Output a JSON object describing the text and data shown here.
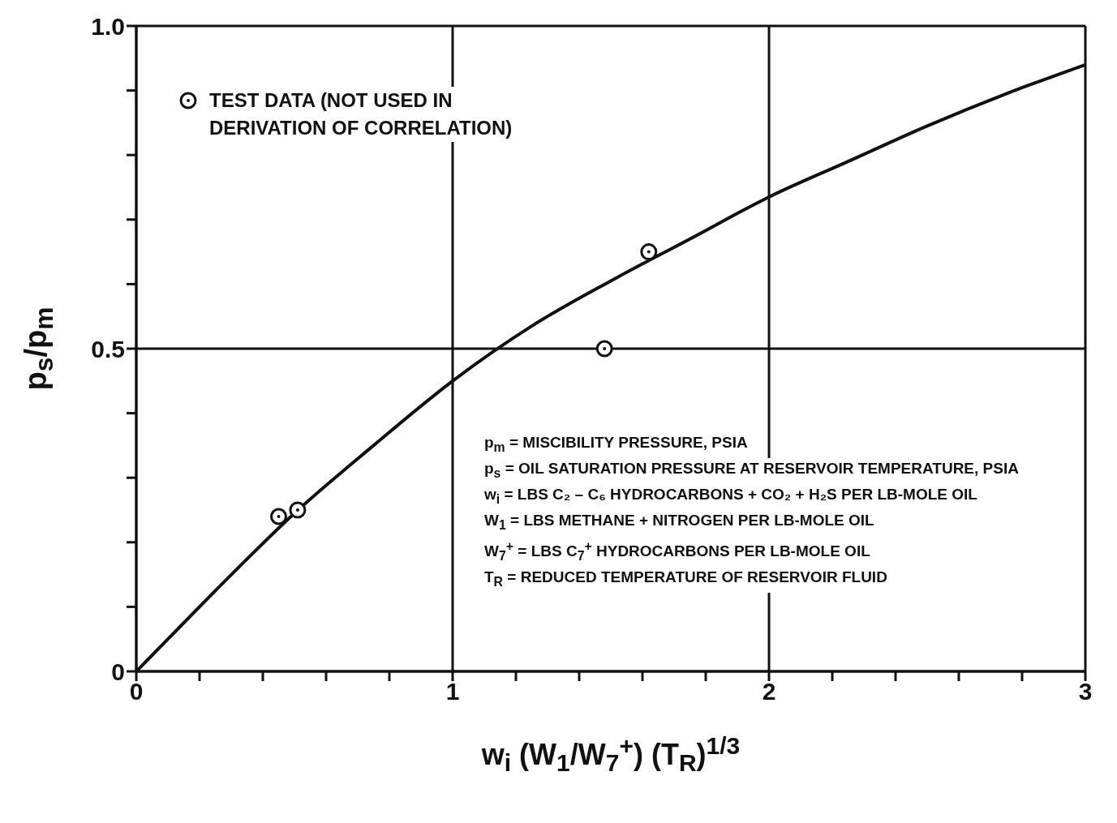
{
  "chart_data": {
    "type": "line",
    "xlabel": "w$_{i}$ (W$_{1}$/W$_{7}$$^{+}$) (T$_{R}$)$^{1/3}$",
    "ylabel": "p$_{s}$/p$_{m}$",
    "series": [
      {
        "color": "#111111",
        "x": [
          0,
          0.1,
          0.25,
          0.5,
          0.75,
          1,
          1.25,
          1.5,
          1.75,
          2,
          2.25,
          2.5,
          2.75,
          3
        ],
        "values": [
          0,
          0.05,
          0.125,
          0.245,
          0.35,
          0.45,
          0.535,
          0.605,
          0.67,
          0.735,
          0.79,
          0.845,
          0.895,
          0.94
        ]
      },
      {
        "type": "scatter",
        "name": "TEST DATA (NOT USED IN DERIVATION OF CORRELATION)",
        "color": "#111111",
        "marker": "circle",
        "x": [
          0.45,
          0.51,
          1.48,
          1.62
        ],
        "values": [
          0.24,
          0.25,
          0.5,
          0.65
        ]
      }
    ],
    "xlim": [
      0,
      3
    ],
    "xticks": [
      0,
      {
        "value": 0.2,
        "label": null
      },
      {
        "value": 0.4,
        "label": null
      },
      {
        "value": 0.6,
        "label": null
      },
      {
        "value": 0.8,
        "label": null
      },
      1,
      {
        "value": 1.2,
        "label": null
      },
      {
        "value": 1.4,
        "label": null
      },
      {
        "value": 1.6,
        "label": null
      },
      {
        "value": 1.8,
        "label": null
      },
      2,
      {
        "value": 2.2,
        "label": null
      },
      {
        "value": 2.4,
        "label": null
      },
      {
        "value": 2.6,
        "label": null
      },
      {
        "value": 2.8,
        "label": null
      },
      3
    ],
    "ylim": [
      0,
      1
    ],
    "yticks": [
      0,
      {
        "value": 0.1,
        "label": null
      },
      {
        "value": 0.2,
        "label": null
      },
      {
        "value": 0.3,
        "label": null
      },
      {
        "value": 0.4,
        "label": null
      },
      0.5,
      {
        "value": 0.6,
        "label": null
      },
      {
        "value": 0.7,
        "label": null
      },
      {
        "value": 0.8,
        "label": null
      },
      {
        "value": 0.9,
        "label": null
      },
      {
        "value": 1,
        "label": "1.0"
      }
    ],
    "grid": true,
    "legend": "top left",
    "annotations": [
      "p$_{m}$ = MISCIBILITY PRESSURE, PSIA",
      "p$_{s}$ = OIL SATURATION PRESSURE AT RESERVOIR TEMPERATURE, PSIA",
      "w$_{i}$ = LBS C₂ – C₆ HYDROCARBONS + CO₂ + H₂S PER LB-MOLE OIL",
      "W$_{1}$ = LBS METHANE + NITROGEN PER LB-MOLE OIL",
      "W$_{7}$$^{+}$ = LBS C$_{7}$$^{+}$ HYDROCARBONS PER LB-MOLE OIL",
      "T$_{R}$ = REDUCED TEMPERATURE OF RESERVOIR FLUID"
    ]
  }
}
